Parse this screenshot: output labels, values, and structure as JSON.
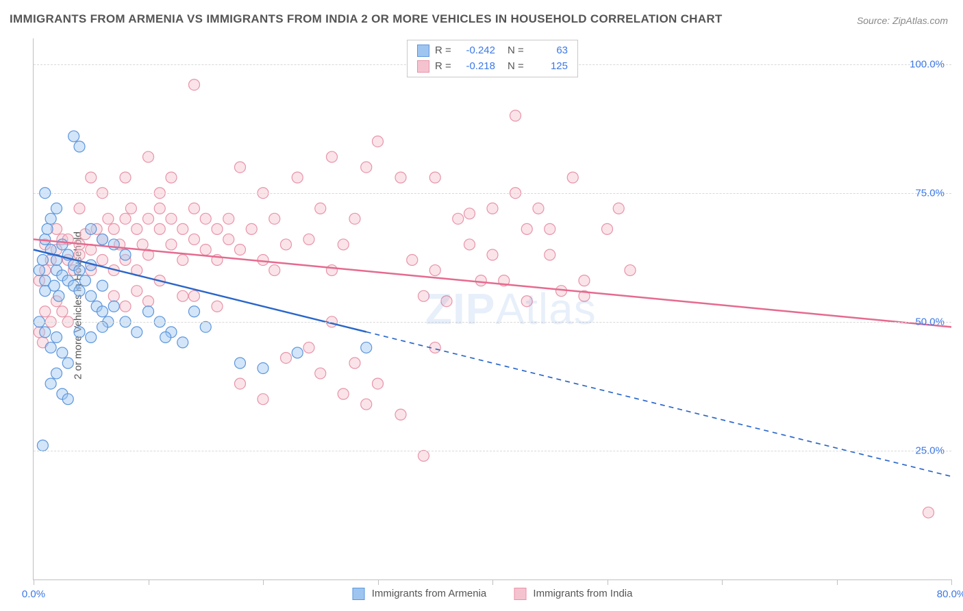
{
  "title": "IMMIGRANTS FROM ARMENIA VS IMMIGRANTS FROM INDIA 2 OR MORE VEHICLES IN HOUSEHOLD CORRELATION CHART",
  "source": "Source: ZipAtlas.com",
  "ylabel": "2 or more Vehicles in Household",
  "watermark": "ZIPAtlas",
  "chart": {
    "type": "scatter",
    "xlim": [
      0,
      80
    ],
    "ylim": [
      0,
      105
    ],
    "xtick_step": 10,
    "x_labels": {
      "first": "0.0%",
      "last": "80.0%"
    },
    "y_ticks": [
      25,
      50,
      75,
      100
    ],
    "y_labels": [
      "25.0%",
      "50.0%",
      "75.0%",
      "100.0%"
    ],
    "grid_color": "#d8d8d8",
    "axis_color": "#bfbfbf",
    "background_color": "#ffffff",
    "tick_label_color": "#3b78e7",
    "marker_radius": 8,
    "marker_opacity": 0.45,
    "line_width": 2.5,
    "series": [
      {
        "name": "Immigrants from Armenia",
        "color_fill": "#9ec5f0",
        "color_stroke": "#5a95dd",
        "line_color": "#2a66c8",
        "R": "-0.242",
        "N": "63",
        "regression": {
          "x1": 0,
          "y1": 64,
          "x2_solid": 29,
          "y2_solid": 48,
          "x2": 80,
          "y2": 20
        },
        "points": [
          [
            0.5,
            60
          ],
          [
            0.8,
            62
          ],
          [
            1,
            58
          ],
          [
            1,
            56
          ],
          [
            1,
            66
          ],
          [
            1.2,
            68
          ],
          [
            1.5,
            70
          ],
          [
            1.5,
            64
          ],
          [
            1.8,
            57
          ],
          [
            2,
            60
          ],
          [
            2,
            62
          ],
          [
            2.2,
            55
          ],
          [
            2.5,
            65
          ],
          [
            2.5,
            59
          ],
          [
            3,
            58
          ],
          [
            3,
            63
          ],
          [
            3.5,
            61
          ],
          [
            3.5,
            57
          ],
          [
            4,
            56
          ],
          [
            4,
            60
          ],
          [
            4.5,
            58
          ],
          [
            5,
            55
          ],
          [
            5,
            61
          ],
          [
            5.5,
            53
          ],
          [
            6,
            52
          ],
          [
            6,
            57
          ],
          [
            6.5,
            50
          ],
          [
            0.5,
            50
          ],
          [
            1,
            48
          ],
          [
            1.5,
            45
          ],
          [
            2,
            47
          ],
          [
            2.5,
            44
          ],
          [
            3,
            42
          ],
          [
            0.8,
            26
          ],
          [
            1.5,
            38
          ],
          [
            2,
            40
          ],
          [
            2.5,
            36
          ],
          [
            3,
            35
          ],
          [
            4,
            48
          ],
          [
            5,
            47
          ],
          [
            6,
            49
          ],
          [
            7,
            53
          ],
          [
            8,
            50
          ],
          [
            9,
            48
          ],
          [
            10,
            52
          ],
          [
            11,
            50
          ],
          [
            12,
            48
          ],
          [
            14,
            52
          ],
          [
            15,
            49
          ],
          [
            13,
            46
          ],
          [
            11.5,
            47
          ],
          [
            3.5,
            86
          ],
          [
            4,
            84
          ],
          [
            2,
            72
          ],
          [
            1,
            75
          ],
          [
            5,
            68
          ],
          [
            6,
            66
          ],
          [
            7,
            65
          ],
          [
            8,
            63
          ],
          [
            18,
            42
          ],
          [
            20,
            41
          ],
          [
            23,
            44
          ],
          [
            29,
            45
          ]
        ]
      },
      {
        "name": "Immigrants from India",
        "color_fill": "#f5c3cf",
        "color_stroke": "#e893a8",
        "line_color": "#e56a8f",
        "R": "-0.218",
        "N": "125",
        "regression": {
          "x1": 0,
          "y1": 66,
          "x2_solid": 80,
          "y2_solid": 49,
          "x2": 80,
          "y2": 49
        },
        "points": [
          [
            0.5,
            58
          ],
          [
            1,
            60
          ],
          [
            1.5,
            62
          ],
          [
            2,
            64
          ],
          [
            2.5,
            66
          ],
          [
            3,
            62
          ],
          [
            3.5,
            60
          ],
          [
            4,
            65
          ],
          [
            4.5,
            67
          ],
          [
            5,
            64
          ],
          [
            5.5,
            68
          ],
          [
            6,
            66
          ],
          [
            6.5,
            70
          ],
          [
            7,
            68
          ],
          [
            7.5,
            65
          ],
          [
            8,
            70
          ],
          [
            8.5,
            72
          ],
          [
            9,
            68
          ],
          [
            9.5,
            65
          ],
          [
            10,
            70
          ],
          [
            10,
            63
          ],
          [
            11,
            68
          ],
          [
            11,
            72
          ],
          [
            12,
            70
          ],
          [
            12,
            65
          ],
          [
            13,
            68
          ],
          [
            13,
            62
          ],
          [
            14,
            66
          ],
          [
            14,
            72
          ],
          [
            15,
            70
          ],
          [
            15,
            64
          ],
          [
            16,
            68
          ],
          [
            16,
            62
          ],
          [
            17,
            66
          ],
          [
            17,
            70
          ],
          [
            18,
            64
          ],
          [
            18,
            80
          ],
          [
            19,
            68
          ],
          [
            20,
            75
          ],
          [
            20,
            62
          ],
          [
            21,
            70
          ],
          [
            21,
            60
          ],
          [
            22,
            65
          ],
          [
            23,
            78
          ],
          [
            24,
            66
          ],
          [
            25,
            72
          ],
          [
            26,
            82
          ],
          [
            26,
            60
          ],
          [
            27,
            65
          ],
          [
            28,
            70
          ],
          [
            14,
            96
          ],
          [
            29,
            80
          ],
          [
            30,
            85
          ],
          [
            32,
            78
          ],
          [
            33,
            62
          ],
          [
            34,
            55
          ],
          [
            35,
            60
          ],
          [
            36,
            54
          ],
          [
            35,
            78
          ],
          [
            37,
            70
          ],
          [
            38,
            65
          ],
          [
            40,
            72
          ],
          [
            41,
            58
          ],
          [
            42,
            75
          ],
          [
            43,
            68
          ],
          [
            43,
            54
          ],
          [
            44,
            72
          ],
          [
            45,
            63
          ],
          [
            46,
            56
          ],
          [
            47,
            78
          ],
          [
            48,
            58
          ],
          [
            50,
            68
          ],
          [
            51,
            72
          ],
          [
            52,
            60
          ],
          [
            18,
            38
          ],
          [
            20,
            35
          ],
          [
            22,
            43
          ],
          [
            24,
            45
          ],
          [
            25,
            40
          ],
          [
            26,
            50
          ],
          [
            27,
            36
          ],
          [
            28,
            42
          ],
          [
            29,
            34
          ],
          [
            30,
            38
          ],
          [
            32,
            32
          ],
          [
            35,
            45
          ],
          [
            14,
            55
          ],
          [
            16,
            53
          ],
          [
            7,
            55
          ],
          [
            8,
            53
          ],
          [
            9,
            56
          ],
          [
            10,
            54
          ],
          [
            5,
            78
          ],
          [
            6,
            75
          ],
          [
            8,
            78
          ],
          [
            10,
            82
          ],
          [
            11,
            75
          ],
          [
            12,
            78
          ],
          [
            4,
            72
          ],
          [
            0.5,
            48
          ],
          [
            1,
            52
          ],
          [
            1.5,
            50
          ],
          [
            2,
            54
          ],
          [
            2.5,
            52
          ],
          [
            3,
            50
          ],
          [
            0.8,
            46
          ],
          [
            78,
            13
          ],
          [
            34,
            24
          ],
          [
            42,
            90
          ],
          [
            38,
            71
          ],
          [
            39,
            58
          ],
          [
            40,
            63
          ],
          [
            45,
            68
          ],
          [
            48,
            55
          ],
          [
            1,
            65
          ],
          [
            2,
            68
          ],
          [
            3,
            66
          ],
          [
            4,
            63
          ],
          [
            5,
            60
          ],
          [
            6,
            62
          ],
          [
            7,
            60
          ],
          [
            8,
            62
          ],
          [
            9,
            60
          ],
          [
            11,
            58
          ],
          [
            13,
            55
          ]
        ]
      }
    ]
  },
  "bottom_legend": [
    {
      "label": "Immigrants from Armenia",
      "fill": "#9ec5f0",
      "stroke": "#5a95dd"
    },
    {
      "label": "Immigrants from India",
      "fill": "#f5c3cf",
      "stroke": "#e893a8"
    }
  ]
}
